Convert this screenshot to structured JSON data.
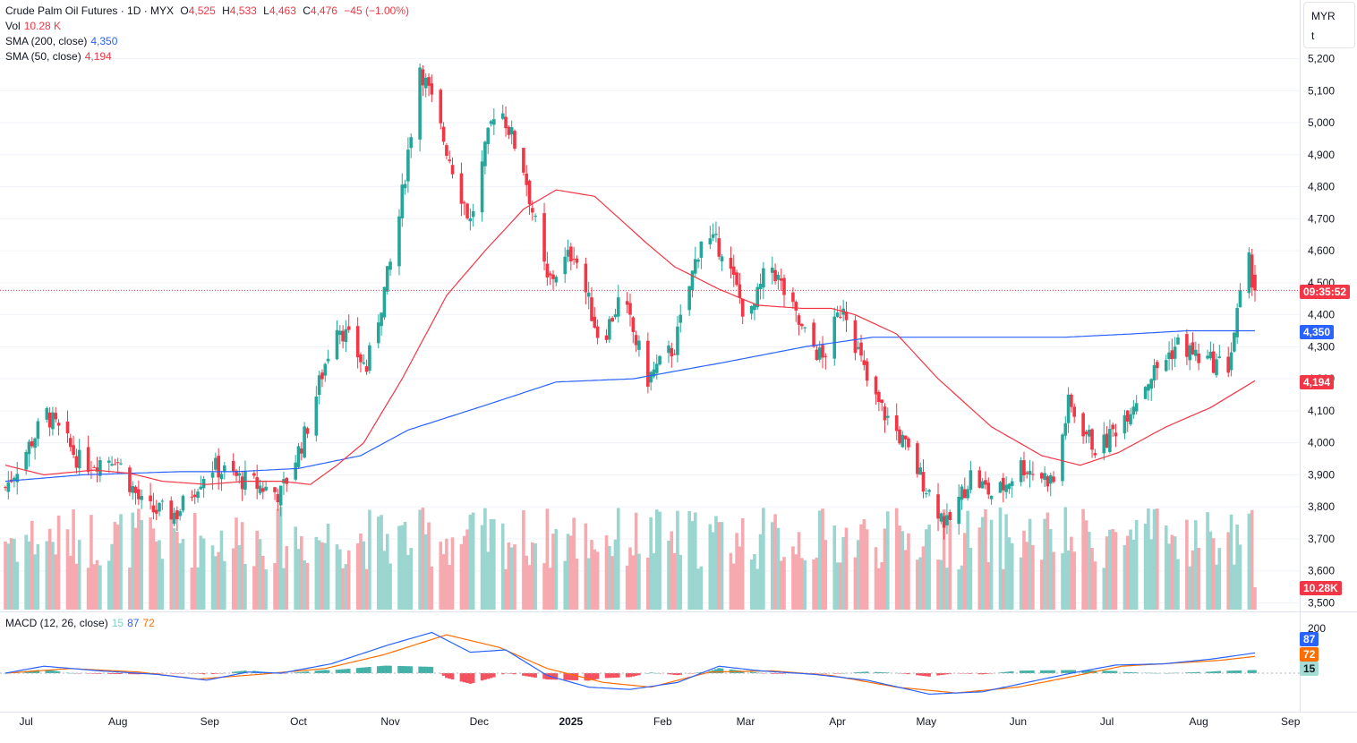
{
  "header": {
    "symbol": "Crude Palm Oil Futures · 1D · MYX",
    "open_key": "O",
    "open": "4,525",
    "high_key": "H",
    "high": "4,533",
    "low_key": "L",
    "low": "4,463",
    "close_key": "C",
    "close": "4,476",
    "change": "−45 (−1.00%)"
  },
  "volume_legend": {
    "label": "Vol",
    "value": "10.28 K"
  },
  "sma200_legend": {
    "label": "SMA (200, close)",
    "value": "4,350"
  },
  "sma50_legend": {
    "label": "SMA (50, close)",
    "value": "4,194"
  },
  "macd_legend": {
    "label": "MACD (12, 26, close)",
    "hist": "15",
    "macd": "87",
    "signal": "72"
  },
  "currency_unit": {
    "currency": "MYR",
    "unit": "t"
  },
  "price_tags": {
    "countdown": "09:35:52",
    "sma200": "4,350",
    "sma50": "4,194",
    "volume": "10.28K",
    "macd": "87",
    "signal": "72",
    "hist": "15"
  },
  "colors": {
    "up": "#26a69a",
    "down": "#f23645",
    "vol_up": "#9ad6cf",
    "vol_down": "#f6a9ae",
    "sma200": "#2962ff",
    "sma50": "#f23645",
    "macd": "#2962ff",
    "signal": "#ff6d00",
    "hist_up": "#26a69a",
    "hist_down": "#f23645"
  },
  "chart_data": {
    "type": "candlestick",
    "y_axis_ticks": [
      "3,500",
      "3,600",
      "3,700",
      "3,800",
      "3,900",
      "4,000",
      "4,100",
      "4,200",
      "4,300",
      "4,400",
      "4,500",
      "4,600",
      "4,700",
      "4,800",
      "4,900",
      "5,000",
      "5,100",
      "5,200"
    ],
    "ylim": [
      3500,
      5200
    ],
    "macd_axis_tick": "200",
    "x_axis_ticks": [
      "Jul",
      "Aug",
      "Sep",
      "Oct",
      "Nov",
      "Dec",
      "2025",
      "Feb",
      "Mar",
      "Apr",
      "May",
      "Jun",
      "Jul",
      "Aug",
      "Sep"
    ],
    "last_price": 4476,
    "date_range": [
      "2024-06-24",
      "2025-08-20"
    ],
    "monthly_price_path": [
      [
        3860,
        "2024-06-24"
      ],
      [
        4090,
        "2024-07-08"
      ],
      [
        3930,
        "2024-07-20"
      ],
      [
        3960,
        "2024-07-31"
      ],
      [
        3790,
        "2024-08-10"
      ],
      [
        3780,
        "2024-08-21"
      ],
      [
        3930,
        "2024-09-01"
      ],
      [
        3880,
        "2024-09-13"
      ],
      [
        3840,
        "2024-09-25"
      ],
      [
        4020,
        "2024-10-03"
      ],
      [
        4380,
        "2024-10-14"
      ],
      [
        4230,
        "2024-10-24"
      ],
      [
        4640,
        "2024-11-03"
      ],
      [
        5180,
        "2024-11-11"
      ],
      [
        4920,
        "2024-11-20"
      ],
      [
        4690,
        "2024-11-28"
      ],
      [
        5080,
        "2024-12-07"
      ],
      [
        4860,
        "2024-12-16"
      ],
      [
        4500,
        "2024-12-24"
      ],
      [
        4600,
        "2025-01-02"
      ],
      [
        4310,
        "2025-01-11"
      ],
      [
        4460,
        "2025-01-18"
      ],
      [
        4200,
        "2025-01-27"
      ],
      [
        4300,
        "2025-02-05"
      ],
      [
        4640,
        "2025-02-14"
      ],
      [
        4610,
        "2025-02-21"
      ],
      [
        4370,
        "2025-03-02"
      ],
      [
        4570,
        "2025-03-09"
      ],
      [
        4350,
        "2025-03-20"
      ],
      [
        4260,
        "2025-03-27"
      ],
      [
        4440,
        "2025-04-03"
      ],
      [
        4160,
        "2025-04-12"
      ],
      [
        4020,
        "2025-04-22"
      ],
      [
        3880,
        "2025-04-30"
      ],
      [
        3740,
        "2025-05-08"
      ],
      [
        3900,
        "2025-05-16"
      ],
      [
        3830,
        "2025-05-24"
      ],
      [
        3930,
        "2025-06-02"
      ],
      [
        3880,
        "2025-06-13"
      ],
      [
        4120,
        "2025-06-18"
      ],
      [
        3970,
        "2025-06-28"
      ],
      [
        4100,
        "2025-07-08"
      ],
      [
        4200,
        "2025-07-15"
      ],
      [
        4310,
        "2025-07-25"
      ],
      [
        4260,
        "2025-08-02"
      ],
      [
        4240,
        "2025-08-11"
      ],
      [
        4450,
        "2025-08-15"
      ],
      [
        4560,
        "2025-08-18"
      ],
      [
        4476,
        "2025-08-20"
      ]
    ],
    "sma50_path": [
      [
        3930,
        "2024-06-24"
      ],
      [
        3900,
        "2024-07-07"
      ],
      [
        3915,
        "2024-07-24"
      ],
      [
        3905,
        "2024-08-05"
      ],
      [
        3880,
        "2024-08-16"
      ],
      [
        3870,
        "2024-08-31"
      ],
      [
        3880,
        "2024-09-13"
      ],
      [
        3880,
        "2024-09-25"
      ],
      [
        3870,
        "2024-10-05"
      ],
      [
        3930,
        "2024-10-14"
      ],
      [
        4000,
        "2024-10-23"
      ],
      [
        4200,
        "2024-11-05"
      ],
      [
        4460,
        "2024-11-20"
      ],
      [
        4600,
        "2024-12-03"
      ],
      [
        4730,
        "2024-12-16"
      ],
      [
        4790,
        "2024-12-27"
      ],
      [
        4770,
        "2025-01-09"
      ],
      [
        4620,
        "2025-01-27"
      ],
      [
        4550,
        "2025-02-05"
      ],
      [
        4480,
        "2025-02-20"
      ],
      [
        4430,
        "2025-03-05"
      ],
      [
        4420,
        "2025-03-20"
      ],
      [
        4420,
        "2025-03-30"
      ],
      [
        4400,
        "2025-04-07"
      ],
      [
        4340,
        "2025-04-21"
      ],
      [
        4200,
        "2025-05-05"
      ],
      [
        4050,
        "2025-05-23"
      ],
      [
        3960,
        "2025-06-09"
      ],
      [
        3930,
        "2025-06-22"
      ],
      [
        3970,
        "2025-07-05"
      ],
      [
        4050,
        "2025-07-21"
      ],
      [
        4110,
        "2025-08-05"
      ],
      [
        4194,
        "2025-08-20"
      ]
    ],
    "sma200_path": [
      [
        3880,
        "2024-06-24"
      ],
      [
        3900,
        "2024-07-20"
      ],
      [
        3910,
        "2024-08-22"
      ],
      [
        3910,
        "2024-09-10"
      ],
      [
        3920,
        "2024-10-01"
      ],
      [
        3960,
        "2024-10-22"
      ],
      [
        4040,
        "2024-11-07"
      ],
      [
        4120,
        "2024-12-04"
      ],
      [
        4190,
        "2024-12-27"
      ],
      [
        4200,
        "2025-01-22"
      ],
      [
        4250,
        "2025-02-21"
      ],
      [
        4300,
        "2025-03-21"
      ],
      [
        4330,
        "2025-04-13"
      ],
      [
        4330,
        "2025-05-21"
      ],
      [
        4330,
        "2025-06-17"
      ],
      [
        4340,
        "2025-07-09"
      ],
      [
        4350,
        "2025-07-28"
      ],
      [
        4350,
        "2025-08-20"
      ]
    ],
    "macd_path": [
      [
        0,
        "2024-06-24"
      ],
      [
        30,
        "2024-07-07"
      ],
      [
        10,
        "2024-07-26"
      ],
      [
        -5,
        "2024-08-14"
      ],
      [
        -30,
        "2024-08-31"
      ],
      [
        5,
        "2024-09-14"
      ],
      [
        0,
        "2024-09-25"
      ],
      [
        40,
        "2024-10-12"
      ],
      [
        120,
        "2024-10-31"
      ],
      [
        175,
        "2024-11-15"
      ],
      [
        90,
        "2024-11-28"
      ],
      [
        100,
        "2024-12-10"
      ],
      [
        -10,
        "2024-12-24"
      ],
      [
        -60,
        "2025-01-07"
      ],
      [
        -70,
        "2025-01-21"
      ],
      [
        -40,
        "2025-02-06"
      ],
      [
        30,
        "2025-02-20"
      ],
      [
        10,
        "2025-03-06"
      ],
      [
        -5,
        "2025-03-24"
      ],
      [
        -30,
        "2025-04-11"
      ],
      [
        -90,
        "2025-05-02"
      ],
      [
        -80,
        "2025-05-20"
      ],
      [
        -40,
        "2025-06-04"
      ],
      [
        0,
        "2025-06-19"
      ],
      [
        35,
        "2025-07-04"
      ],
      [
        40,
        "2025-07-20"
      ],
      [
        60,
        "2025-08-05"
      ],
      [
        87,
        "2025-08-20"
      ]
    ],
    "signal_path": [
      [
        0,
        "2024-06-24"
      ],
      [
        20,
        "2024-07-16"
      ],
      [
        5,
        "2024-08-08"
      ],
      [
        -25,
        "2024-08-28"
      ],
      [
        -5,
        "2024-09-18"
      ],
      [
        20,
        "2024-10-10"
      ],
      [
        80,
        "2024-10-30"
      ],
      [
        165,
        "2024-11-20"
      ],
      [
        110,
        "2024-12-08"
      ],
      [
        20,
        "2024-12-24"
      ],
      [
        -40,
        "2025-01-12"
      ],
      [
        -60,
        "2025-01-28"
      ],
      [
        5,
        "2025-02-17"
      ],
      [
        10,
        "2025-03-10"
      ],
      [
        -10,
        "2025-03-30"
      ],
      [
        -60,
        "2025-04-21"
      ],
      [
        -85,
        "2025-05-11"
      ],
      [
        -60,
        "2025-06-01"
      ],
      [
        -15,
        "2025-06-19"
      ],
      [
        30,
        "2025-07-06"
      ],
      [
        45,
        "2025-07-26"
      ],
      [
        55,
        "2025-08-08"
      ],
      [
        72,
        "2025-08-20"
      ]
    ]
  }
}
